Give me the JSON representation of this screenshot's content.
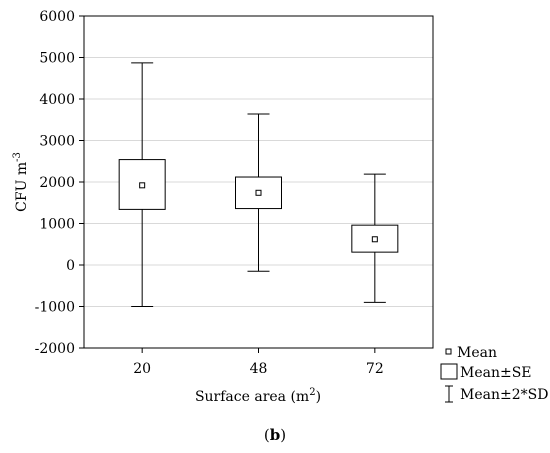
{
  "chart_data": {
    "type": "box",
    "xlabel_main": "Surface area (m",
    "xlabel_sup": "2",
    "xlabel_tail": ")",
    "ylabel_main": "CFU m",
    "ylabel_sup": "-3",
    "categories": [
      "20",
      "48",
      "72"
    ],
    "ylim": [
      -2000,
      6000
    ],
    "yticks": [
      -2000,
      -1000,
      0,
      1000,
      2000,
      3000,
      4000,
      5000,
      6000
    ],
    "ytick_labels": [
      "-2000",
      "-1000",
      "0",
      "1000",
      "2000",
      "3000",
      "4000",
      "5000",
      "6000"
    ],
    "grid": true,
    "boxes": [
      {
        "category": "20",
        "mean": 1920,
        "se_low": 1340,
        "se_high": 2540,
        "sd2_low": -1000,
        "sd2_high": 4870
      },
      {
        "category": "48",
        "mean": 1740,
        "se_low": 1360,
        "se_high": 2120,
        "sd2_low": -150,
        "sd2_high": 3640
      },
      {
        "category": "72",
        "mean": 620,
        "se_low": 310,
        "se_high": 960,
        "sd2_low": -900,
        "sd2_high": 2190
      }
    ],
    "legend": {
      "placement": "bottom-right",
      "entries": [
        "Mean",
        "Mean±SE",
        "Mean±2*SD"
      ]
    },
    "panel_label": "(b)",
    "colors": {
      "stroke": "#000000",
      "grid": "#d9d9d9",
      "background": "#ffffff"
    }
  }
}
